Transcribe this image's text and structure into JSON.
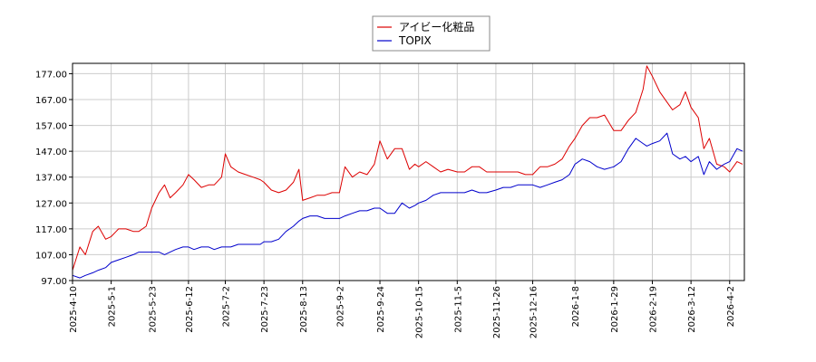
{
  "chart_data": {
    "type": "line",
    "legend_position": "top-center",
    "grid": true,
    "ylim": [
      97.0,
      181.0
    ],
    "yticks": [
      "177.00",
      "167.00",
      "157.00",
      "147.00",
      "137.00",
      "127.00",
      "117.00",
      "107.00",
      "97.00"
    ],
    "ytick_values": [
      177,
      167,
      157,
      147,
      137,
      127,
      117,
      107,
      97
    ],
    "xlim": [
      "2025-04-10",
      "2026-04-10"
    ],
    "xticks": [
      "2025-4-10",
      "2025-5-1",
      "2025-5-23",
      "2025-6-12",
      "2025-7-2",
      "2025-7-23",
      "2025-8-13",
      "2025-9-2",
      "2025-9-24",
      "2025-10-15",
      "2025-11-5",
      "2025-11-26",
      "2025-12-16",
      "2026-1-8",
      "2026-1-29",
      "2026-2-19",
      "2026-3-12",
      "2026-4-2"
    ],
    "series": [
      {
        "name": "アイビー化粧品",
        "color": "#dd0000",
        "points": [
          [
            "2025-04-10",
            101
          ],
          [
            "2025-04-14",
            110
          ],
          [
            "2025-04-17",
            107
          ],
          [
            "2025-04-21",
            116
          ],
          [
            "2025-04-24",
            118
          ],
          [
            "2025-04-28",
            113
          ],
          [
            "2025-05-01",
            114
          ],
          [
            "2025-05-05",
            117
          ],
          [
            "2025-05-09",
            117
          ],
          [
            "2025-05-13",
            116
          ],
          [
            "2025-05-16",
            116
          ],
          [
            "2025-05-20",
            118
          ],
          [
            "2025-05-23",
            125
          ],
          [
            "2025-05-27",
            131
          ],
          [
            "2025-05-30",
            134
          ],
          [
            "2025-06-02",
            129
          ],
          [
            "2025-06-05",
            131
          ],
          [
            "2025-06-09",
            134
          ],
          [
            "2025-06-12",
            138
          ],
          [
            "2025-06-15",
            136
          ],
          [
            "2025-06-19",
            133
          ],
          [
            "2025-06-23",
            134
          ],
          [
            "2025-06-26",
            134
          ],
          [
            "2025-06-30",
            137
          ],
          [
            "2025-07-02",
            146
          ],
          [
            "2025-07-05",
            141
          ],
          [
            "2025-07-09",
            139
          ],
          [
            "2025-07-13",
            138
          ],
          [
            "2025-07-17",
            137
          ],
          [
            "2025-07-21",
            136
          ],
          [
            "2025-07-23",
            135
          ],
          [
            "2025-07-27",
            132
          ],
          [
            "2025-07-31",
            131
          ],
          [
            "2025-08-04",
            132
          ],
          [
            "2025-08-08",
            135
          ],
          [
            "2025-08-11",
            140
          ],
          [
            "2025-08-13",
            128
          ],
          [
            "2025-08-17",
            129
          ],
          [
            "2025-08-21",
            130
          ],
          [
            "2025-08-25",
            130
          ],
          [
            "2025-08-29",
            131
          ],
          [
            "2025-09-02",
            131
          ],
          [
            "2025-09-05",
            141
          ],
          [
            "2025-09-09",
            137
          ],
          [
            "2025-09-13",
            139
          ],
          [
            "2025-09-17",
            138
          ],
          [
            "2025-09-21",
            142
          ],
          [
            "2025-09-24",
            151
          ],
          [
            "2025-09-28",
            144
          ],
          [
            "2025-10-02",
            148
          ],
          [
            "2025-10-06",
            148
          ],
          [
            "2025-10-10",
            140
          ],
          [
            "2025-10-13",
            142
          ],
          [
            "2025-10-15",
            141
          ],
          [
            "2025-10-19",
            143
          ],
          [
            "2025-10-23",
            141
          ],
          [
            "2025-10-27",
            139
          ],
          [
            "2025-10-31",
            140
          ],
          [
            "2025-11-05",
            139
          ],
          [
            "2025-11-09",
            139
          ],
          [
            "2025-11-13",
            141
          ],
          [
            "2025-11-17",
            141
          ],
          [
            "2025-11-21",
            139
          ],
          [
            "2025-11-26",
            139
          ],
          [
            "2025-11-30",
            139
          ],
          [
            "2025-12-04",
            139
          ],
          [
            "2025-12-08",
            139
          ],
          [
            "2025-12-12",
            138
          ],
          [
            "2025-12-16",
            138
          ],
          [
            "2025-12-20",
            141
          ],
          [
            "2025-12-24",
            141
          ],
          [
            "2025-12-28",
            142
          ],
          [
            "2026-01-01",
            144
          ],
          [
            "2026-01-05",
            149
          ],
          [
            "2026-01-08",
            152
          ],
          [
            "2026-01-12",
            157
          ],
          [
            "2026-01-16",
            160
          ],
          [
            "2026-01-20",
            160
          ],
          [
            "2026-01-24",
            161
          ],
          [
            "2026-01-29",
            155
          ],
          [
            "2026-02-02",
            155
          ],
          [
            "2026-02-06",
            159
          ],
          [
            "2026-02-10",
            162
          ],
          [
            "2026-02-14",
            171
          ],
          [
            "2026-02-16",
            180
          ],
          [
            "2026-02-19",
            176
          ],
          [
            "2026-02-23",
            170
          ],
          [
            "2026-02-27",
            166
          ],
          [
            "2026-03-02",
            163
          ],
          [
            "2026-03-06",
            165
          ],
          [
            "2026-03-09",
            170
          ],
          [
            "2026-03-12",
            164
          ],
          [
            "2026-03-16",
            160
          ],
          [
            "2026-03-19",
            148
          ],
          [
            "2026-03-22",
            152
          ],
          [
            "2026-03-26",
            142
          ],
          [
            "2026-03-30",
            141
          ],
          [
            "2026-04-02",
            139
          ],
          [
            "2026-04-06",
            143
          ],
          [
            "2026-04-09",
            142
          ]
        ]
      },
      {
        "name": "TOPIX",
        "color": "#0000cc",
        "points": [
          [
            "2025-04-10",
            99
          ],
          [
            "2025-04-14",
            98
          ],
          [
            "2025-04-17",
            99
          ],
          [
            "2025-04-21",
            100
          ],
          [
            "2025-04-24",
            101
          ],
          [
            "2025-04-28",
            102
          ],
          [
            "2025-05-01",
            104
          ],
          [
            "2025-05-05",
            105
          ],
          [
            "2025-05-09",
            106
          ],
          [
            "2025-05-13",
            107
          ],
          [
            "2025-05-16",
            108
          ],
          [
            "2025-05-20",
            108
          ],
          [
            "2025-05-23",
            108
          ],
          [
            "2025-05-27",
            108
          ],
          [
            "2025-05-30",
            107
          ],
          [
            "2025-06-02",
            108
          ],
          [
            "2025-06-05",
            109
          ],
          [
            "2025-06-09",
            110
          ],
          [
            "2025-06-12",
            110
          ],
          [
            "2025-06-15",
            109
          ],
          [
            "2025-06-19",
            110
          ],
          [
            "2025-06-23",
            110
          ],
          [
            "2025-06-26",
            109
          ],
          [
            "2025-06-30",
            110
          ],
          [
            "2025-07-02",
            110
          ],
          [
            "2025-07-05",
            110
          ],
          [
            "2025-07-09",
            111
          ],
          [
            "2025-07-13",
            111
          ],
          [
            "2025-07-17",
            111
          ],
          [
            "2025-07-21",
            111
          ],
          [
            "2025-07-23",
            112
          ],
          [
            "2025-07-27",
            112
          ],
          [
            "2025-07-31",
            113
          ],
          [
            "2025-08-04",
            116
          ],
          [
            "2025-08-08",
            118
          ],
          [
            "2025-08-11",
            120
          ],
          [
            "2025-08-13",
            121
          ],
          [
            "2025-08-17",
            122
          ],
          [
            "2025-08-21",
            122
          ],
          [
            "2025-08-25",
            121
          ],
          [
            "2025-08-29",
            121
          ],
          [
            "2025-09-02",
            121
          ],
          [
            "2025-09-05",
            122
          ],
          [
            "2025-09-09",
            123
          ],
          [
            "2025-09-13",
            124
          ],
          [
            "2025-09-17",
            124
          ],
          [
            "2025-09-21",
            125
          ],
          [
            "2025-09-24",
            125
          ],
          [
            "2025-09-28",
            123
          ],
          [
            "2025-10-02",
            123
          ],
          [
            "2025-10-06",
            127
          ],
          [
            "2025-10-10",
            125
          ],
          [
            "2025-10-13",
            126
          ],
          [
            "2025-10-15",
            127
          ],
          [
            "2025-10-19",
            128
          ],
          [
            "2025-10-23",
            130
          ],
          [
            "2025-10-27",
            131
          ],
          [
            "2025-10-31",
            131
          ],
          [
            "2025-11-05",
            131
          ],
          [
            "2025-11-09",
            131
          ],
          [
            "2025-11-13",
            132
          ],
          [
            "2025-11-17",
            131
          ],
          [
            "2025-11-21",
            131
          ],
          [
            "2025-11-26",
            132
          ],
          [
            "2025-11-30",
            133
          ],
          [
            "2025-12-04",
            133
          ],
          [
            "2025-12-08",
            134
          ],
          [
            "2025-12-12",
            134
          ],
          [
            "2025-12-16",
            134
          ],
          [
            "2025-12-20",
            133
          ],
          [
            "2025-12-24",
            134
          ],
          [
            "2025-12-28",
            135
          ],
          [
            "2026-01-01",
            136
          ],
          [
            "2026-01-05",
            138
          ],
          [
            "2026-01-08",
            142
          ],
          [
            "2026-01-12",
            144
          ],
          [
            "2026-01-16",
            143
          ],
          [
            "2026-01-20",
            141
          ],
          [
            "2026-01-24",
            140
          ],
          [
            "2026-01-29",
            141
          ],
          [
            "2026-02-02",
            143
          ],
          [
            "2026-02-06",
            148
          ],
          [
            "2026-02-10",
            152
          ],
          [
            "2026-02-14",
            150
          ],
          [
            "2026-02-16",
            149
          ],
          [
            "2026-02-19",
            150
          ],
          [
            "2026-02-23",
            151
          ],
          [
            "2026-02-27",
            154
          ],
          [
            "2026-03-02",
            146
          ],
          [
            "2026-03-06",
            144
          ],
          [
            "2026-03-09",
            145
          ],
          [
            "2026-03-12",
            143
          ],
          [
            "2026-03-16",
            145
          ],
          [
            "2026-03-19",
            138
          ],
          [
            "2026-03-22",
            143
          ],
          [
            "2026-03-26",
            140
          ],
          [
            "2026-03-30",
            142
          ],
          [
            "2026-04-02",
            143
          ],
          [
            "2026-04-06",
            148
          ],
          [
            "2026-04-09",
            147
          ]
        ]
      }
    ]
  }
}
